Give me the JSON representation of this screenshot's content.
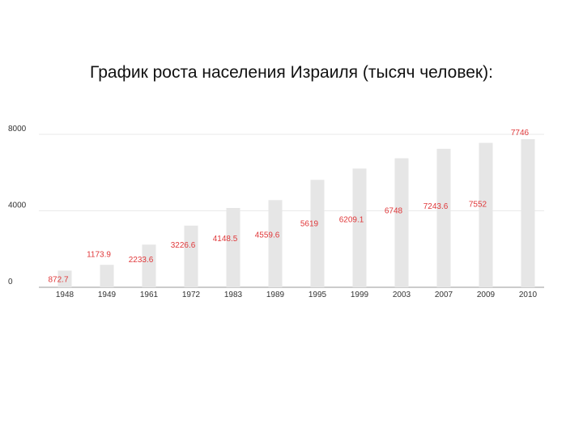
{
  "slide": {
    "title": "График роста населения Израиля (тысяч человек):"
  },
  "chart_data": {
    "type": "bar",
    "title": "",
    "xlabel": "",
    "ylabel": "",
    "ylim": [
      0,
      8000
    ],
    "yticks": [
      "0",
      "4000",
      "8000"
    ],
    "grid": true,
    "categories": [
      "1948",
      "1949",
      "1961",
      "1972",
      "1983",
      "1989",
      "1995",
      "1999",
      "2003",
      "2007",
      "2009",
      "2010"
    ],
    "values": [
      872.7,
      1173.9,
      2233.6,
      3226.6,
      4148.5,
      4559.6,
      5619,
      6209.1,
      6748,
      7243.6,
      7552,
      7746
    ],
    "data_labels": [
      "872.7",
      "1173.9",
      "2233.6",
      "3226.6",
      "4148.5",
      "4559.6",
      "5619",
      "6209.1",
      "6748",
      "7243.6",
      "7552",
      "7746"
    ],
    "colors": {
      "bar": "#e6e6e6",
      "label": "#e0383a",
      "grid": "#e9e9e9",
      "axis": "#999999"
    }
  }
}
